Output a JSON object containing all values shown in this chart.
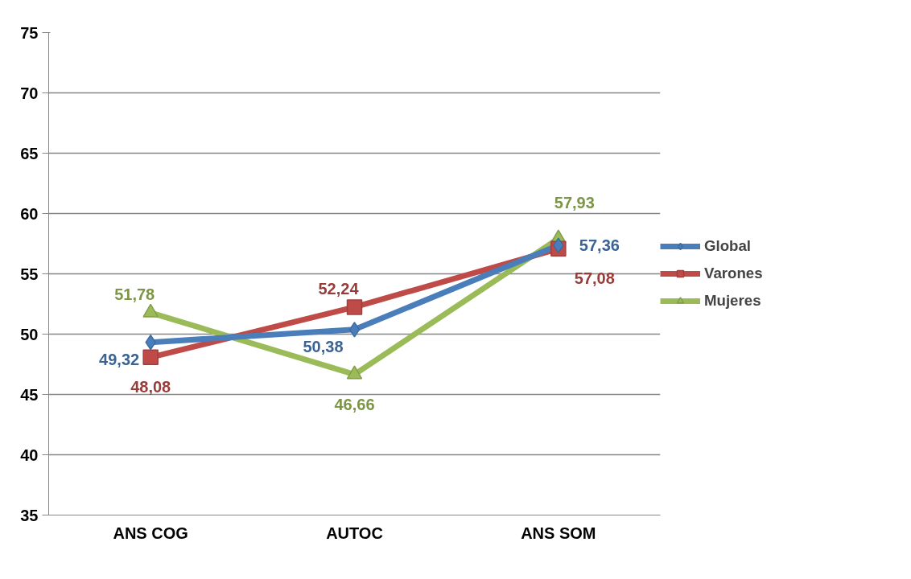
{
  "chart_data": {
    "type": "line",
    "categories": [
      "ANS COG",
      "AUTOC",
      "ANS SOM"
    ],
    "series": [
      {
        "name": "Global",
        "color": "#4a7ebb",
        "marker": "diamond",
        "values": [
          49.32,
          50.38,
          57.36
        ],
        "value_labels": [
          "49,32",
          "50,38",
          "57,36"
        ]
      },
      {
        "name": "Varones",
        "color": "#be4b48",
        "marker": "square",
        "values": [
          48.08,
          52.24,
          57.08
        ],
        "value_labels": [
          "48,08",
          "52,24",
          "57,08"
        ]
      },
      {
        "name": "Mujeres",
        "color": "#9bbb59",
        "marker": "triangle",
        "values": [
          51.78,
          46.66,
          57.93
        ],
        "value_labels": [
          "51,78",
          "46,66",
          "57,93"
        ]
      }
    ],
    "ylim": [
      35,
      75
    ],
    "yticks": [
      35,
      40,
      45,
      50,
      55,
      60,
      65,
      70,
      75
    ],
    "grid": "y",
    "legend": "right"
  }
}
